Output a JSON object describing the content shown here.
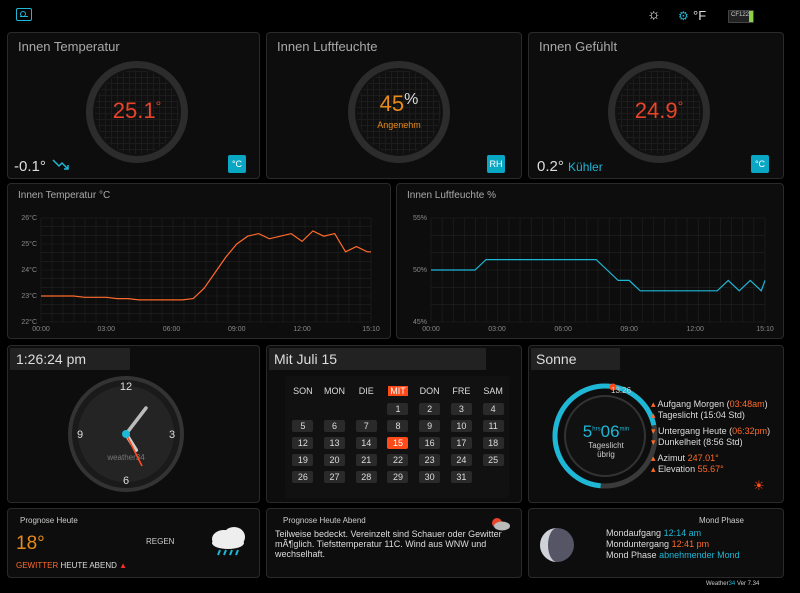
{
  "topbar": {
    "unit_label": "°F",
    "battery_label": "CF122"
  },
  "indoor_temp": {
    "title": "Innen Temperatur",
    "value": "25.1",
    "unit": "°",
    "trend": "-0.1°",
    "badge": "°C",
    "color": "#e8442a"
  },
  "indoor_humidity": {
    "title": "Innen Luftfeuchte",
    "value": "45",
    "unit": "%",
    "status": "Angenehm",
    "badge": "RH",
    "color": "#e88a1a"
  },
  "indoor_feel": {
    "title": "Innen Gefühlt",
    "value": "24.9",
    "unit": "°",
    "trend": "0.2°",
    "trend_label": "Kühler",
    "badge": "°C",
    "color": "#e8442a"
  },
  "temp_chart_title": "Innen Temperatur °C",
  "hum_chart_title": "Innen Luftfeuchte %",
  "chart_data": [
    {
      "type": "line",
      "ylabel": "",
      "ylim": [
        22,
        26
      ],
      "yticks": [
        "22°C",
        "23°C",
        "24°C",
        "25°C",
        "26°C"
      ],
      "xticks": [
        "00:00",
        "03:00",
        "06:00",
        "09:00",
        "12:00",
        "15:10"
      ],
      "x": [
        0,
        0.5,
        1,
        1.5,
        2,
        2.5,
        3,
        3.5,
        4,
        4.5,
        5,
        5.5,
        6,
        6.5,
        7,
        7.5,
        8,
        8.5,
        9,
        9.5,
        10,
        10.5,
        11,
        11.5,
        12,
        12.5,
        13,
        13.5,
        14,
        14.5,
        15,
        15.17
      ],
      "series": [
        {
          "values": [
            23.0,
            23.0,
            23.0,
            23.0,
            22.95,
            22.95,
            22.95,
            22.9,
            22.9,
            22.85,
            22.85,
            22.85,
            22.85,
            22.85,
            22.9,
            23.3,
            23.9,
            24.5,
            25.0,
            25.3,
            25.4,
            25.2,
            25.3,
            25.4,
            25.1,
            25.5,
            25.3,
            25.4,
            24.7,
            24.9,
            24.7,
            24.7
          ],
          "color": "#ff6a2a"
        }
      ]
    },
    {
      "type": "line",
      "ylabel": "",
      "ylim": [
        45,
        55
      ],
      "yticks": [
        "45%",
        "50%",
        "55%"
      ],
      "xticks": [
        "00:00",
        "03:00",
        "06:00",
        "09:00",
        "12:00",
        "15:10"
      ],
      "x": [
        0,
        0.5,
        1,
        1.5,
        2,
        2.5,
        3,
        3.5,
        4,
        4.5,
        5,
        5.5,
        6,
        6.5,
        7,
        7.5,
        8,
        8.5,
        9,
        9.5,
        10,
        10.5,
        11,
        11.5,
        12,
        12.5,
        13,
        13.5,
        14,
        14.5,
        15,
        15.17
      ],
      "series": [
        {
          "values": [
            50,
            50,
            50,
            50,
            50,
            51,
            51,
            51,
            51,
            51,
            51,
            51,
            51,
            51,
            51,
            51,
            50,
            49,
            49,
            48,
            48,
            48,
            48,
            48,
            48,
            48,
            48,
            49,
            48,
            49,
            48,
            49
          ],
          "color": "#1fb7d6"
        }
      ]
    }
  ],
  "clock": {
    "time": "1:26:24 pm",
    "brand": "weather34",
    "n12": "12",
    "n3": "3",
    "n6": "6",
    "n9": "9"
  },
  "calendar": {
    "title": "Mit Juli 15",
    "headers": [
      "SON",
      "MON",
      "DIE",
      "MIT",
      "DON",
      "FRE",
      "SAM"
    ],
    "rows": [
      [
        "",
        "",
        "",
        "1",
        "2",
        "3",
        "4"
      ],
      [
        "5",
        "6",
        "7",
        "8",
        "9",
        "10",
        "11"
      ],
      [
        "12",
        "13",
        "14",
        "15",
        "16",
        "17",
        "18"
      ],
      [
        "19",
        "20",
        "21",
        "22",
        "23",
        "24",
        "25"
      ],
      [
        "26",
        "27",
        "28",
        "29",
        "30",
        "31",
        ""
      ]
    ],
    "today": "15"
  },
  "sun": {
    "title": "Sonne",
    "dial_time": "13:26",
    "hrs": "5",
    "hrs_unit": "hrs",
    "mins": "06",
    "mins_unit": "min",
    "daylight_label": "Tageslicht",
    "left_label": "übrig",
    "rise_label": "Aufgang Morgen",
    "rise_time": "03:48am",
    "daylight_line": "Tageslicht (15:04 Std)",
    "set_label": "Untergang Heute",
    "set_time": "06:32pm",
    "dark_line": "Dunkelheit (8:56 Std)",
    "azimut_label": "Azimut",
    "azimut": "247.01°",
    "elev_label": "Elevation",
    "elev": "55.67°"
  },
  "forecast_today": {
    "title": "Prognose Heute",
    "temp": "18°",
    "cond": "REGEN",
    "warn_a": "GEWITTER",
    "warn_b": "HEUTE ABEND"
  },
  "forecast_evening": {
    "title": "Prognose Heute Abend",
    "text": "Teilweise bedeckt. Vereinzelt sind Schauer oder Gewitter mÃ¶glich. Tiefsttemperatur 11C. Wind aus WNW und wechselhaft."
  },
  "moon": {
    "title": "Mond Phase",
    "rise_label": "Mondaufgang",
    "rise": "12:14 am",
    "set_label": "Monduntergang",
    "set": "12:41 pm",
    "phase_label": "Mond Phase",
    "phase": "abnehmender Mond"
  },
  "footer": {
    "brand": "Weather",
    "brand2": "34",
    "ver": "Ver 7.34"
  }
}
